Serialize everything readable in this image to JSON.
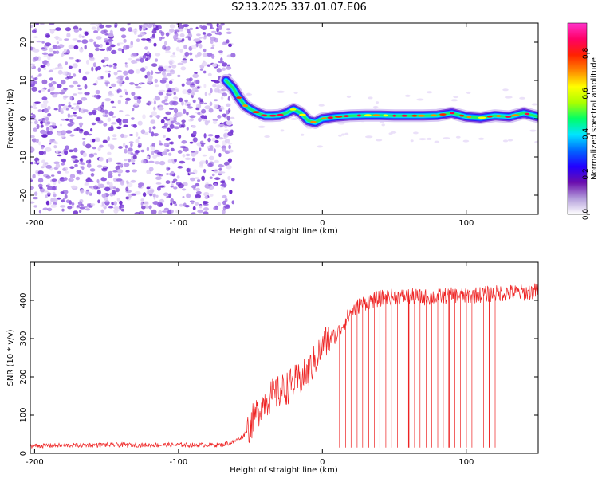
{
  "title": "S233.2025.337.01.07.E06",
  "chart_data": [
    {
      "type": "heatmap",
      "panel": "spectrogram",
      "xlabel": "Height of straight line (km)",
      "ylabel": "Frequency (Hz)",
      "xlim": [
        -203,
        150
      ],
      "ylim": [
        -25,
        25
      ],
      "xticks": [
        -200,
        -100,
        0,
        100
      ],
      "yticks": [
        -20,
        -10,
        0,
        10,
        20
      ],
      "xtick_labels": [
        "-200",
        "-100",
        "0",
        "100"
      ],
      "ytick_labels": [
        "-20",
        "-10",
        "0",
        "10",
        "20"
      ],
      "noise_region_x": [
        -203,
        -62
      ],
      "ridge": {
        "x": [
          -67,
          -62,
          -58,
          -54,
          -50,
          -45,
          -40,
          -35,
          -30,
          -25,
          -20,
          -15,
          -10,
          -5,
          0,
          10,
          20,
          30,
          40,
          50,
          60,
          70,
          80,
          90,
          100,
          110,
          120,
          130,
          140,
          150
        ],
        "freq": [
          10,
          8,
          5.5,
          3.5,
          2.5,
          1.5,
          0.8,
          0.8,
          0.9,
          1.5,
          2.5,
          1.5,
          -0.5,
          -1,
          0,
          0.5,
          0.8,
          0.9,
          0.9,
          0.8,
          0.8,
          0.8,
          0.9,
          1.5,
          0.5,
          0.2,
          0.8,
          0.5,
          1.5,
          0.5
        ]
      },
      "colorbar": {
        "label": "Normalized spectral amplitude",
        "range": [
          0.0,
          0.95
        ],
        "ticks": [
          0.0,
          0.2,
          0.4,
          0.6,
          0.8
        ],
        "tick_labels": [
          "0.0",
          "0.2",
          "0.4",
          "0.6",
          "0.8"
        ],
        "colors": [
          "#ffffff",
          "#b39ddb",
          "#6a0dad",
          "#2200ff",
          "#0066ff",
          "#00e5ff",
          "#00ff66",
          "#aaff00",
          "#ffff00",
          "#ff8800",
          "#ff2200",
          "#ff0066",
          "#ff33cc"
        ]
      }
    },
    {
      "type": "line",
      "panel": "snr",
      "xlabel": "Height of straight line (km)",
      "ylabel": "SNR (10 * v/v)",
      "xlim": [
        -203,
        150
      ],
      "ylim": [
        0,
        500
      ],
      "xticks": [
        -200,
        -100,
        0,
        100
      ],
      "yticks": [
        0,
        100,
        200,
        300,
        400
      ],
      "xtick_labels": [
        "-200",
        "-100",
        "0",
        "100"
      ],
      "ytick_labels": [
        "0",
        "100",
        "200",
        "300",
        "400"
      ],
      "color": "#ee2222",
      "series": [
        {
          "name": "SNR",
          "x": [
            -203,
            -150,
            -100,
            -70,
            -62,
            -55,
            -50,
            -45,
            -40,
            -35,
            -30,
            -25,
            -20,
            -15,
            -10,
            -5,
            0,
            5,
            10,
            15,
            20,
            25,
            30,
            40,
            50,
            60,
            70,
            80,
            90,
            100,
            110,
            120,
            130,
            140,
            150
          ],
          "y": [
            20,
            22,
            22,
            22,
            30,
            45,
            75,
            110,
            135,
            150,
            160,
            170,
            185,
            195,
            210,
            245,
            280,
            300,
            310,
            340,
            370,
            385,
            395,
            405,
            410,
            410,
            408,
            410,
            412,
            412,
            415,
            418,
            420,
            420,
            425
          ]
        }
      ],
      "dropouts_x": [
        12,
        16,
        20,
        24,
        28,
        32,
        36,
        40,
        44,
        48,
        52,
        56,
        60,
        64,
        68,
        72,
        76,
        80,
        84,
        88,
        92,
        96,
        100,
        104,
        108,
        112,
        116,
        120
      ],
      "dropout_floor": 15
    }
  ]
}
